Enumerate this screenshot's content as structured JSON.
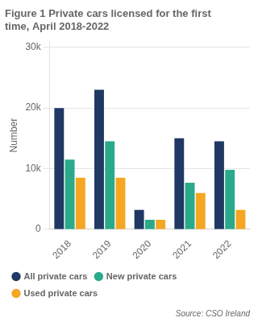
{
  "chart_data": {
    "type": "bar",
    "title": "Figure 1 Private cars licensed for the first\ntime, April 2018-2022",
    "ylabel": "Number",
    "annotations": [
      "Source: CSO Ireland"
    ],
    "categories": [
      "2018",
      "2019",
      "2020",
      "2021",
      "2022"
    ],
    "series": [
      {
        "name": "All private cars",
        "color": "#1f3864",
        "values": [
          20000,
          23000,
          3200,
          15000,
          14500
        ]
      },
      {
        "name": "New private cars",
        "color": "#2aaa8a",
        "values": [
          11500,
          14500,
          1600,
          7700,
          9800
        ]
      },
      {
        "name": "Used private cars",
        "color": "#f5a623",
        "values": [
          8500,
          8500,
          1600,
          6000,
          3200
        ]
      }
    ],
    "ylim": [
      0,
      31000
    ],
    "yticks": [
      0,
      {
        "value": 10000,
        "label": "10k"
      },
      {
        "value": 20000,
        "label": "20k"
      },
      {
        "value": 30000,
        "label": "30k"
      }
    ],
    "grid": true,
    "legend": "bottom"
  }
}
